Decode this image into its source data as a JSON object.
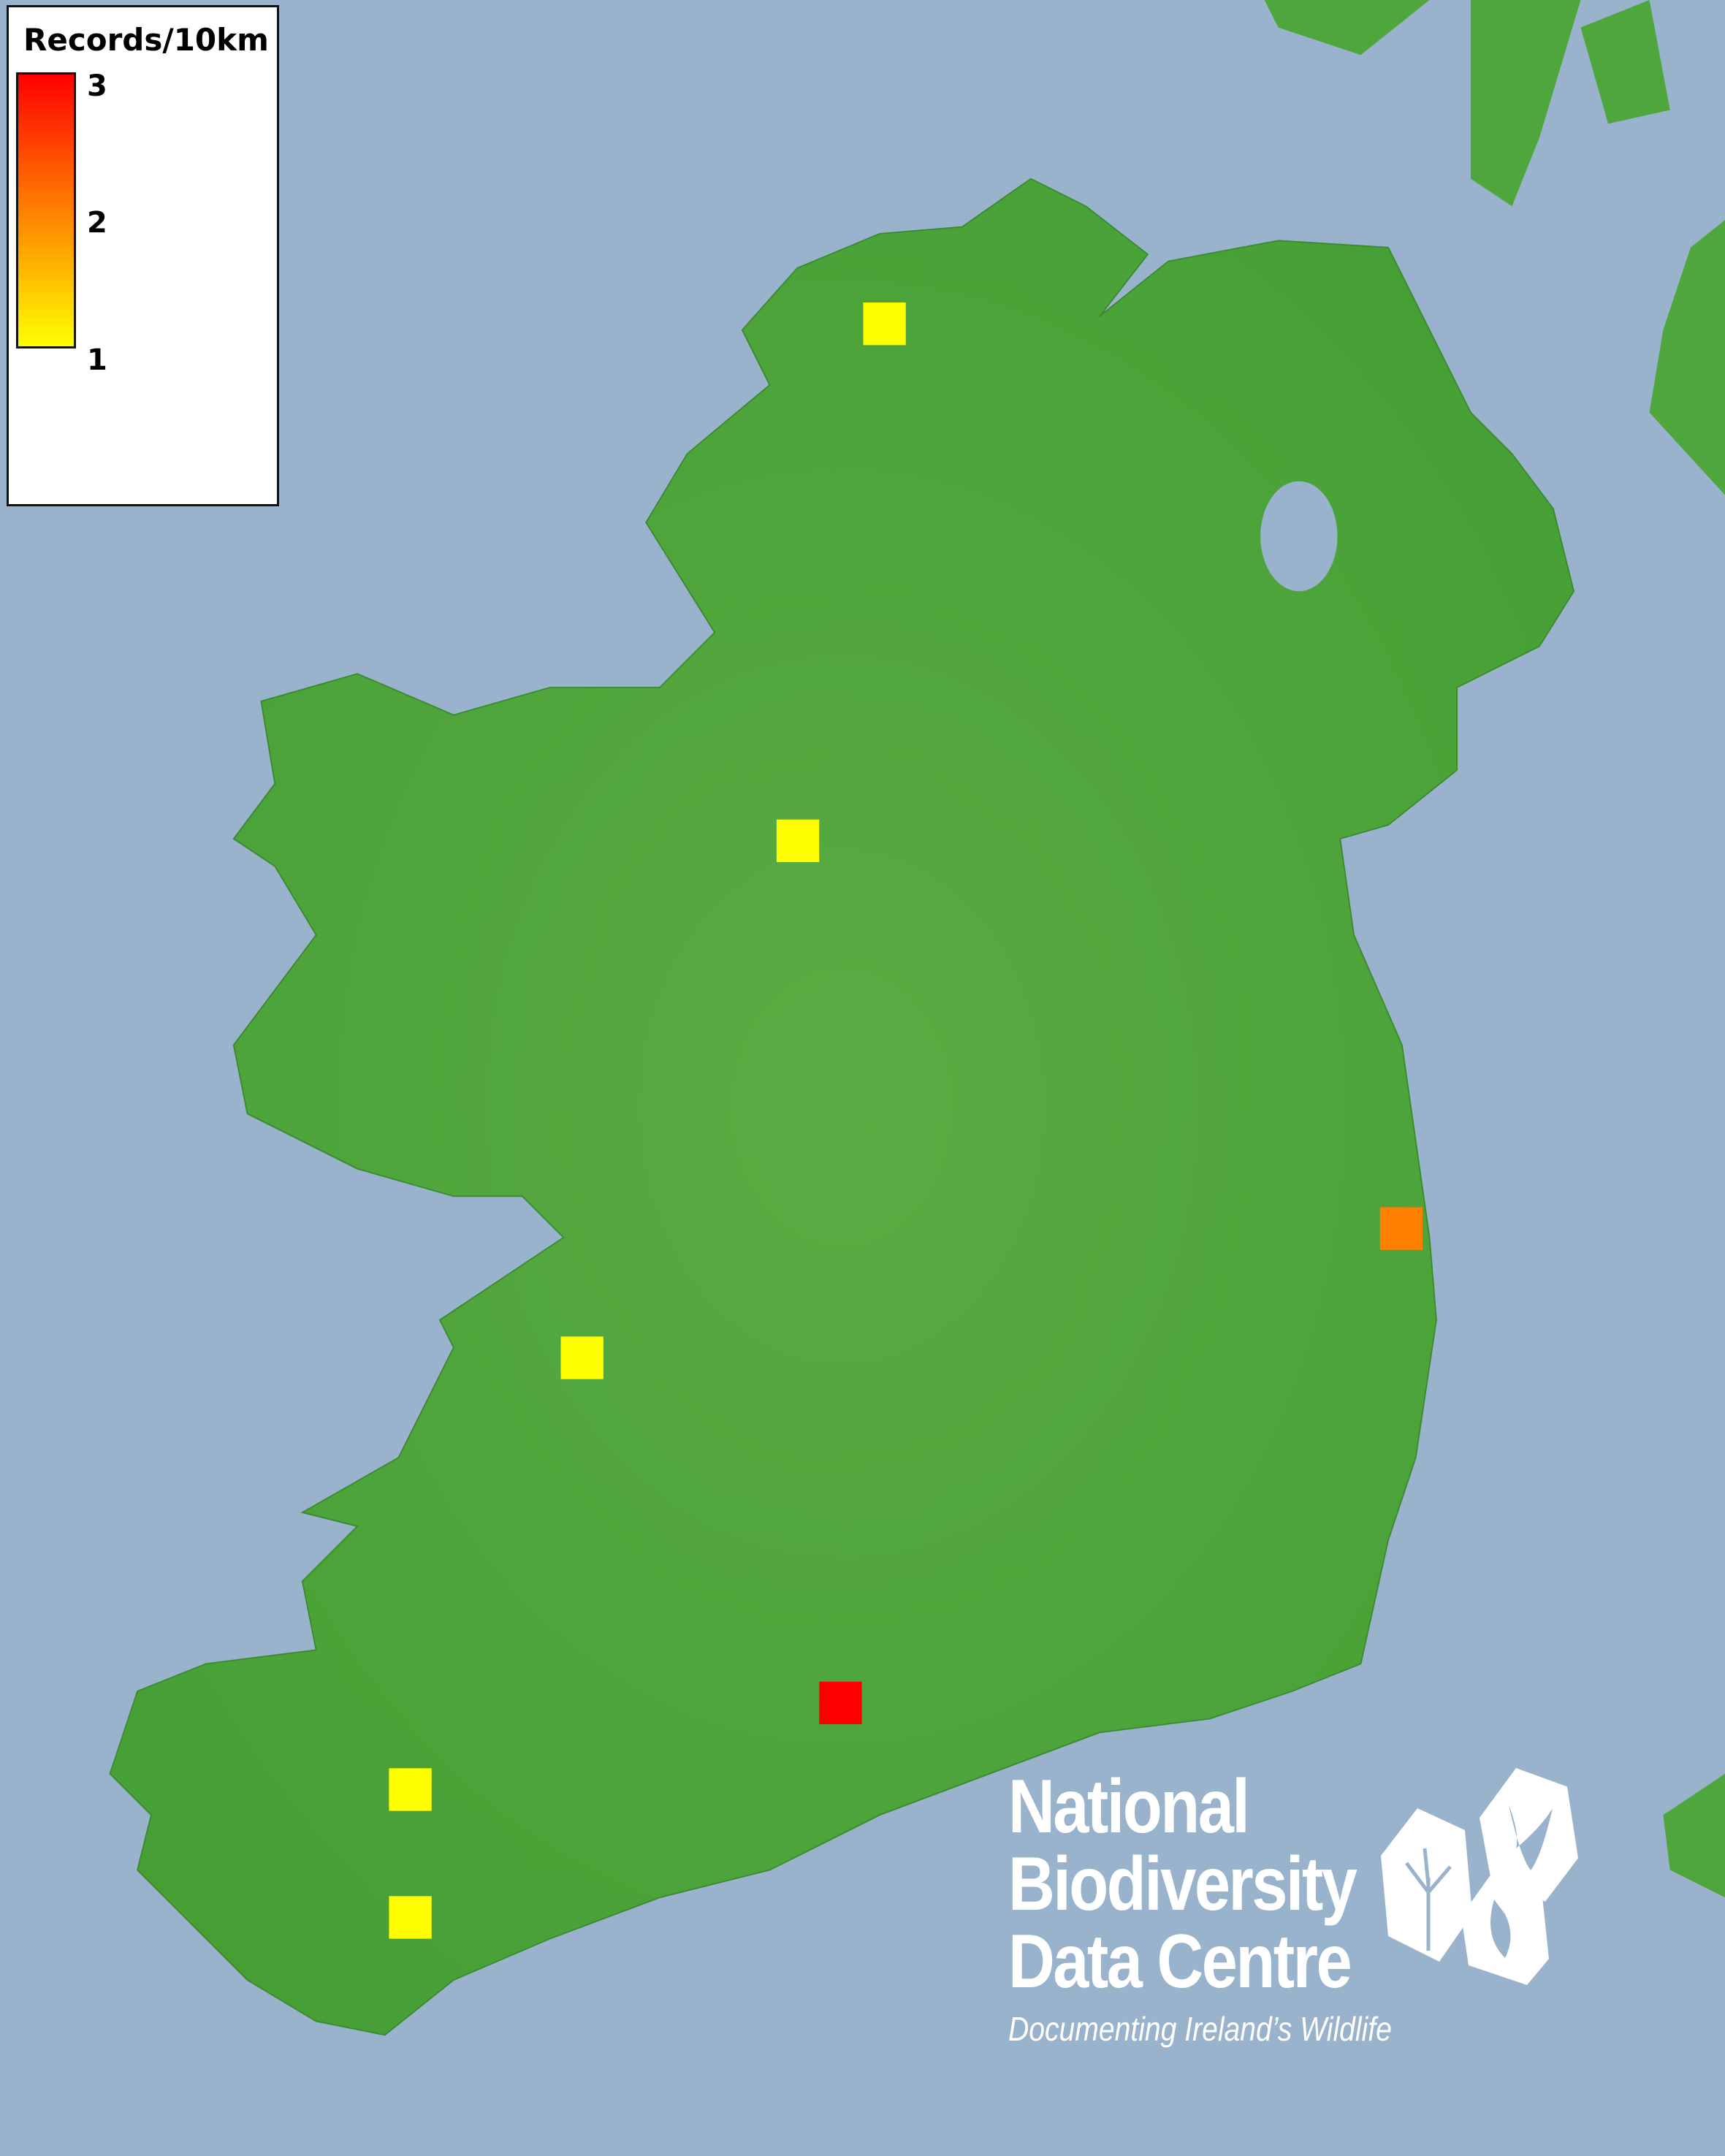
{
  "legend": {
    "title": "Records/10km",
    "ticks": [
      "3",
      "2",
      "1"
    ],
    "colors": {
      "min": "#ffff00",
      "mid": "#ff8000",
      "max": "#ff0000"
    }
  },
  "map": {
    "sea_color": "#99b3cc",
    "land_color": "#4ea63c",
    "records": [
      {
        "value": 1,
        "color": "#ffff00"
      },
      {
        "value": 1,
        "color": "#ffff00"
      },
      {
        "value": 2,
        "color": "#ff8000"
      },
      {
        "value": 1,
        "color": "#ffff00"
      },
      {
        "value": 3,
        "color": "#ff0000"
      },
      {
        "value": 1,
        "color": "#ffff00"
      },
      {
        "value": 1,
        "color": "#ffff00"
      }
    ]
  },
  "logo": {
    "line1": "National",
    "line2": "Biodiversity",
    "line3": "Data Centre",
    "tagline": "Documenting Ireland’s Wildlife",
    "icons": [
      "tree-icon",
      "butterfly-icon",
      "seahorse-icon"
    ]
  }
}
